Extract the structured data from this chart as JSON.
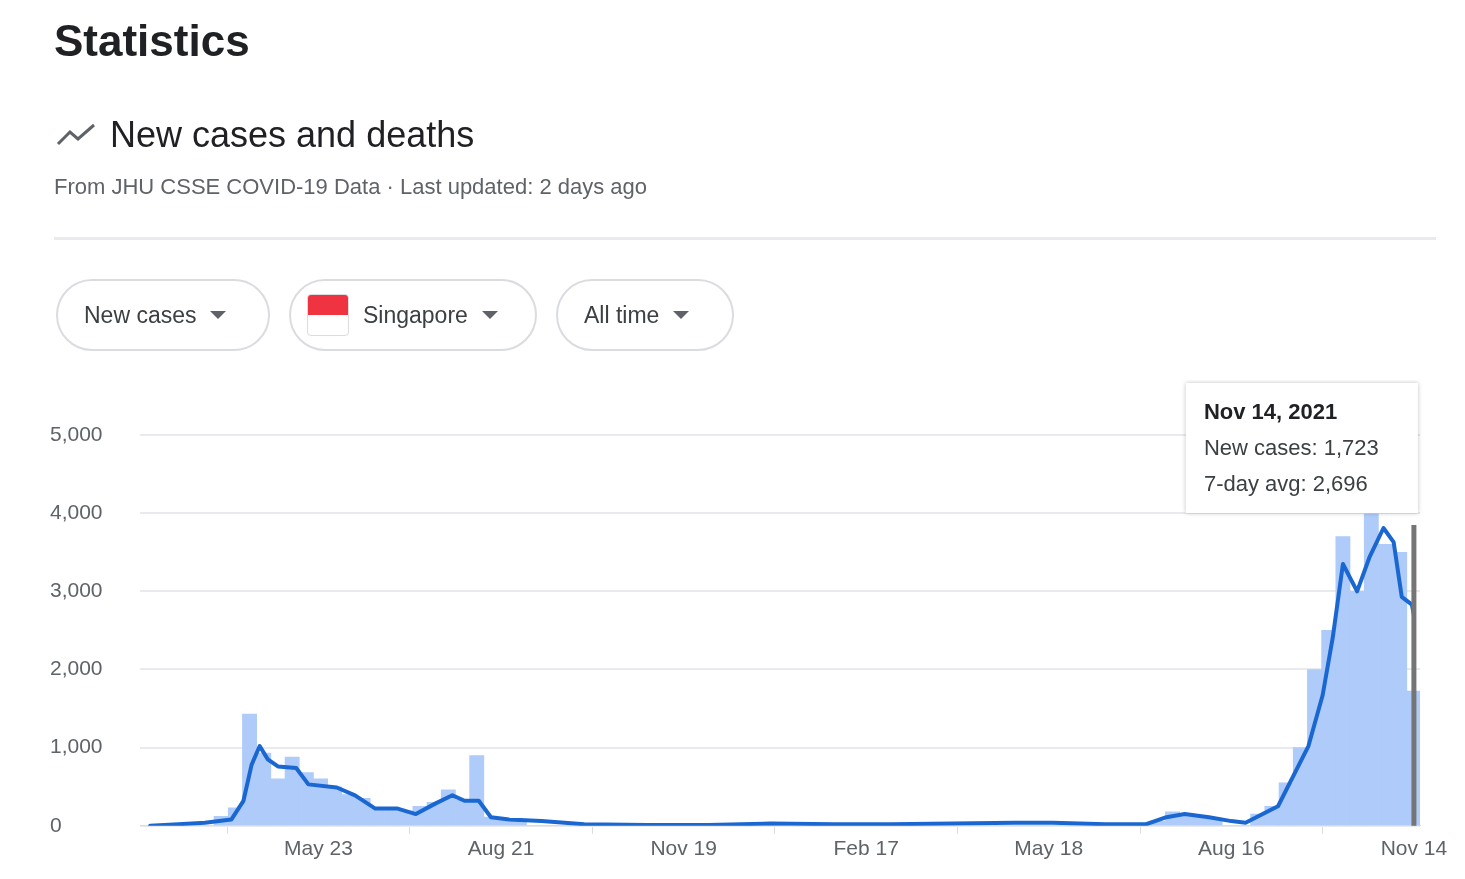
{
  "chart_data": {
    "type": "bar",
    "title": "Statistics",
    "subtitle": "New cases and deaths",
    "annotations": [
      "From JHU CSSE COVID-19 Data · Last updated: 2 days ago",
      "New cases",
      "Singapore",
      "All time",
      "Nov 14, 2021",
      "New cases: 1,723",
      "7-day avg: 2,696"
    ],
    "xlim": [
      "2020-02-25",
      "2021-11-17"
    ],
    "xticks": [
      {
        "value": "2020-05-23",
        "label": "May 23"
      },
      {
        "value": "2020-08-21",
        "label": "Aug 21"
      },
      {
        "value": "2020-11-19",
        "label": "Nov 19"
      },
      {
        "value": "2021-02-17",
        "label": "Feb 17"
      },
      {
        "value": "2021-05-18",
        "label": "May 18"
      },
      {
        "value": "2021-08-16",
        "label": "Aug 16"
      },
      {
        "value": "2021-11-14",
        "label": "Nov 14"
      }
    ],
    "ylim": [
      0,
      5000
    ],
    "yticks": [
      {
        "value": 0,
        "label": "0"
      },
      {
        "value": 1000,
        "label": "1,000"
      },
      {
        "value": 2000,
        "label": "2,000"
      },
      {
        "value": 3000,
        "label": "3,000"
      },
      {
        "value": 4000,
        "label": "4,000"
      },
      {
        "value": 5000,
        "label": "5,000"
      }
    ],
    "grid": "y",
    "legend": false,
    "ref_lines": [
      {
        "axis": "x",
        "value": "2021-11-14",
        "label": null,
        "color": "#757575"
      }
    ],
    "series": [
      {
        "color": "#aecbfa",
        "x": [
          "2020-04-05",
          "2020-04-12",
          "2020-04-19",
          "2020-04-26",
          "2020-05-03",
          "2020-05-10",
          "2020-05-17",
          "2020-05-24",
          "2020-05-31",
          "2020-06-07",
          "2020-06-14",
          "2020-06-21",
          "2020-06-28",
          "2020-07-05",
          "2020-07-12",
          "2020-07-19",
          "2020-07-26",
          "2020-08-02",
          "2020-08-09",
          "2020-08-16",
          "2020-08-23",
          "2020-08-30",
          "2020-09-06",
          "2020-09-13",
          "2020-09-20",
          "2020-09-27",
          "2020-10-04",
          "2020-10-11",
          "2020-10-18",
          "2020-10-25",
          "2020-11-01",
          "2020-11-08",
          "2020-11-15",
          "2020-11-22",
          "2020-11-29",
          "2020-12-06",
          "2020-12-13",
          "2020-12-20",
          "2020-12-27",
          "2021-01-03",
          "2021-01-10",
          "2021-01-17",
          "2021-01-24",
          "2021-01-31",
          "2021-02-07",
          "2021-02-14",
          "2021-02-21",
          "2021-02-28",
          "2021-03-07",
          "2021-03-14",
          "2021-03-21",
          "2021-03-28",
          "2021-04-04",
          "2021-04-11",
          "2021-04-18",
          "2021-04-25",
          "2021-05-02",
          "2021-05-09",
          "2021-05-16",
          "2021-05-23",
          "2021-05-30",
          "2021-06-06",
          "2021-06-13",
          "2021-06-20",
          "2021-06-27",
          "2021-07-04",
          "2021-07-11",
          "2021-07-18",
          "2021-07-25",
          "2021-08-01",
          "2021-08-08",
          "2021-08-15",
          "2021-08-22",
          "2021-08-29",
          "2021-09-05",
          "2021-09-12",
          "2021-09-19",
          "2021-09-26",
          "2021-10-03",
          "2021-10-10",
          "2021-10-17",
          "2021-10-24",
          "2021-10-31",
          "2021-11-07",
          "2021-11-14"
        ],
        "values": [
          120,
          230,
          1430,
          930,
          600,
          880,
          680,
          600,
          500,
          400,
          350,
          220,
          210,
          190,
          250,
          300,
          460,
          330,
          900,
          110,
          90,
          60,
          null,
          null,
          null,
          null,
          null,
          null,
          null,
          null,
          null,
          null,
          null,
          null,
          null,
          null,
          null,
          null,
          null,
          null,
          null,
          null,
          null,
          null,
          null,
          null,
          null,
          null,
          null,
          null,
          null,
          null,
          null,
          null,
          null,
          null,
          null,
          null,
          null,
          null,
          null,
          null,
          null,
          null,
          null,
          null,
          60,
          180,
          160,
          130,
          100,
          null,
          null,
          150,
          250,
          550,
          1000,
          2000,
          2500,
          3700,
          3000,
          3990,
          3600,
          3500,
          1723
        ]
      },
      {
        "type": "line",
        "color": "#1a67d2",
        "x": [
          "2020-03-01",
          "2020-03-15",
          "2020-03-28",
          "2020-04-10",
          "2020-04-16",
          "2020-04-20",
          "2020-04-24",
          "2020-04-28",
          "2020-05-03",
          "2020-05-12",
          "2020-05-18",
          "2020-06-01",
          "2020-06-10",
          "2020-06-20",
          "2020-07-01",
          "2020-07-10",
          "2020-07-20",
          "2020-07-28",
          "2020-08-03",
          "2020-08-10",
          "2020-08-16",
          "2020-08-25",
          "2020-09-10",
          "2020-10-01",
          "2020-11-01",
          "2020-12-01",
          "2021-01-01",
          "2021-02-01",
          "2021-03-01",
          "2021-04-01",
          "2021-05-01",
          "2021-05-20",
          "2021-06-15",
          "2021-07-05",
          "2021-07-15",
          "2021-07-24",
          "2021-08-05",
          "2021-08-16",
          "2021-08-23",
          "2021-09-08",
          "2021-09-23",
          "2021-09-30",
          "2021-10-05",
          "2021-10-10",
          "2021-10-17",
          "2021-10-23",
          "2021-10-30",
          "2021-11-04",
          "2021-11-08",
          "2021-11-13",
          "2021-11-14"
        ],
        "values": [
          0,
          20,
          40,
          80,
          320,
          780,
          1020,
          850,
          760,
          740,
          530,
          490,
          390,
          220,
          220,
          150,
          290,
          390,
          320,
          320,
          110,
          80,
          60,
          20,
          10,
          10,
          30,
          20,
          20,
          30,
          40,
          40,
          20,
          20,
          110,
          150,
          110,
          60,
          40,
          250,
          1020,
          1670,
          2410,
          3350,
          3000,
          3430,
          3810,
          3630,
          2930,
          2830,
          2696
        ]
      }
    ]
  }
}
